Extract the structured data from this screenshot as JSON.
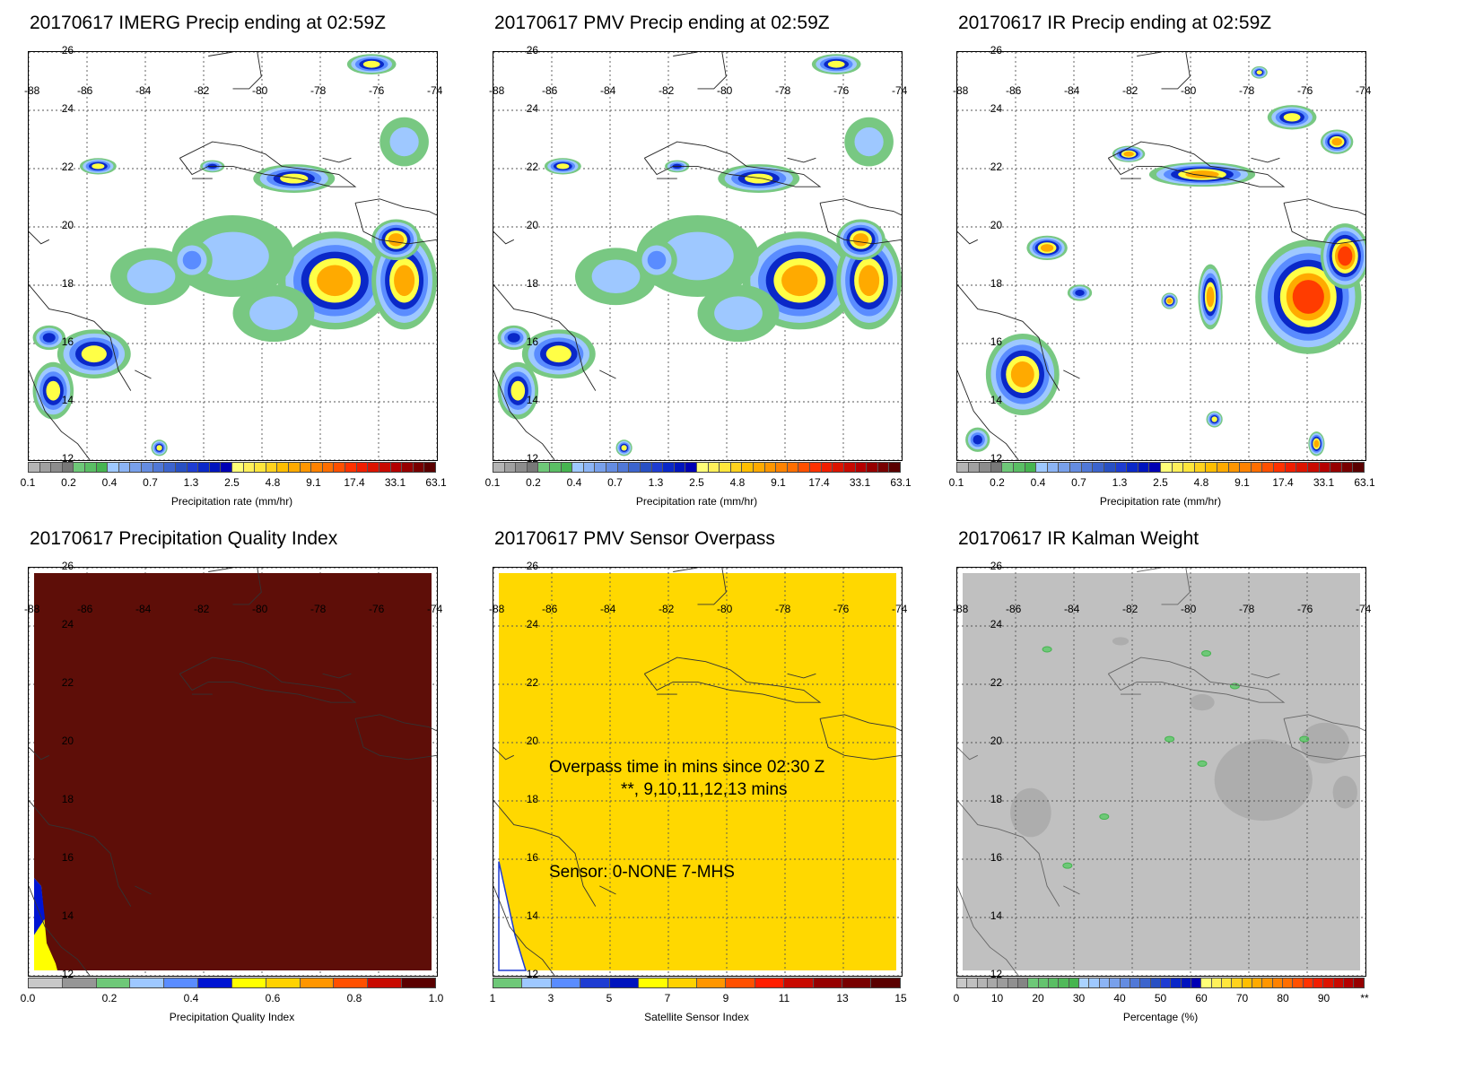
{
  "panels": [
    {
      "title": "20170617 IMERG Precip ending at 02:59Z",
      "type": "precip",
      "cbar_title": "Precipitation rate (mm/hr)"
    },
    {
      "title": "20170617 PMV Precip ending at 02:59Z",
      "type": "precip",
      "cbar_title": "Precipitation rate (mm/hr)"
    },
    {
      "title": "20170617 IR Precip ending at 02:59Z",
      "type": "precip",
      "cbar_title": "Precipitation rate (mm/hr)"
    },
    {
      "title": "20170617 Precipitation Quality Index",
      "type": "pqi",
      "cbar_title": "Precipitation Quality Index"
    },
    {
      "title": "20170617 PMV Sensor Overpass",
      "type": "sensor",
      "cbar_title": "Satellite Sensor Index"
    },
    {
      "title": "20170617 IR Kalman Weight",
      "type": "kalman",
      "cbar_title": "Percentage (%)"
    }
  ],
  "lon_labels": [
    "-88",
    "-86",
    "-84",
    "-82",
    "-80",
    "-78",
    "-76",
    "-74"
  ],
  "lat_labels": [
    "26",
    "24",
    "22",
    "20",
    "18",
    "16",
    "14",
    "12"
  ],
  "colorbars": {
    "precip": {
      "ticks": [
        "0.1",
        "0.2",
        "0.4",
        "0.7",
        "1.3",
        "2.5",
        "4.8",
        "9.1",
        "17.4",
        "33.1",
        "63.1"
      ],
      "colors": [
        "#b4b4b4",
        "#a0a0a0",
        "#8c8c8c",
        "#787878",
        "#6ec878",
        "#5abe64",
        "#46b450",
        "#9ec8ff",
        "#8cb4f5",
        "#78a0eb",
        "#648ce1",
        "#5078d7",
        "#3c64cd",
        "#2850c3",
        "#1e3cd2",
        "#0a28c8",
        "#0014be",
        "#0000b4",
        "#ffff78",
        "#fff05a",
        "#ffe63c",
        "#ffd21e",
        "#ffbe00",
        "#ffaa00",
        "#ff9600",
        "#ff8200",
        "#ff6e00",
        "#ff5000",
        "#ff3200",
        "#f01e00",
        "#dc1400",
        "#c80a00",
        "#b40000",
        "#960000",
        "#780000",
        "#5a0000"
      ]
    },
    "pqi": {
      "ticks": [
        "0.0",
        "0.2",
        "0.4",
        "0.6",
        "0.8",
        "1.0"
      ],
      "colors": [
        "#c8c8c8",
        "#969696",
        "#6ec878",
        "#9ec8ff",
        "#5a8cff",
        "#0014d2",
        "#ffff00",
        "#ffd200",
        "#ff9600",
        "#ff5000",
        "#c80a00",
        "#5a0000"
      ]
    },
    "sensor": {
      "ticks": [
        "1",
        "3",
        "5",
        "7",
        "9",
        "11",
        "13",
        "15"
      ],
      "colors": [
        "#6ec878",
        "#9ec8ff",
        "#5a8cff",
        "#1e3cd2",
        "#0014be",
        "#ffff00",
        "#ffd200",
        "#ff9600",
        "#ff5000",
        "#ff1e00",
        "#c80a00",
        "#960000",
        "#780000",
        "#5a0000"
      ]
    },
    "kalman": {
      "ticks": [
        "0",
        "10",
        "20",
        "30",
        "40",
        "50",
        "60",
        "70",
        "80",
        "90",
        "**"
      ],
      "colors": [
        "#c8c8c8",
        "#c0c0c0",
        "#b4b4b4",
        "#a8a8a8",
        "#9c9c9c",
        "#909090",
        "#848484",
        "#6ec878",
        "#64c36e",
        "#5abe64",
        "#50b95a",
        "#46b450",
        "#aad2ff",
        "#9ec8ff",
        "#8cb4f5",
        "#78a0eb",
        "#648ce1",
        "#5078d7",
        "#3c64cd",
        "#2850c3",
        "#1e3cd2",
        "#0a28c8",
        "#0014be",
        "#0000b4",
        "#ffff78",
        "#fff05a",
        "#ffe63c",
        "#ffd21e",
        "#ffbe00",
        "#ffaa00",
        "#ff9600",
        "#ff8200",
        "#ff6e00",
        "#ff5000",
        "#ff3200",
        "#f01e00",
        "#dc1400",
        "#c80a00",
        "#b40000",
        "#960000"
      ]
    }
  },
  "sensor_notes": {
    "line1": "Overpass time in mins since 02:30 Z",
    "line2": "**, 9,10,11,12,13 mins",
    "line3": "Sensor:   0-NONE  7-MHS"
  },
  "fill_colors": {
    "pqi_bg": "#5e0e08",
    "sensor_bg": "#ffd800",
    "kalman_bg": "#c0c0c0"
  }
}
